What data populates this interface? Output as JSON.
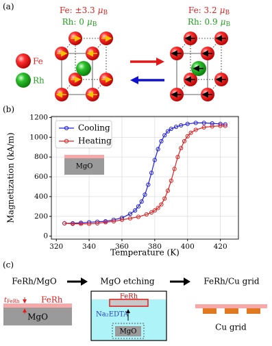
{
  "panel_a": {
    "label": "(a)",
    "left": {
      "fe": {
        "text": "Fe: ±3.3",
        "unit": "μ",
        "unit_sub": "B"
      },
      "rh": {
        "text": "Rh: 0",
        "unit": "μ",
        "unit_sub": "B"
      }
    },
    "right": {
      "fe": {
        "text": "Fe: 3.2",
        "unit": "μ",
        "unit_sub": "B"
      },
      "rh": {
        "text": "Rh: 0.9",
        "unit": "μ",
        "unit_sub": "B"
      }
    },
    "legend": [
      "Fe",
      "Rh"
    ]
  },
  "panel_b": {
    "label": "(b)",
    "inset_label": "MgO"
  },
  "chart_data": {
    "type": "line",
    "x_label": "Temperature (K)",
    "y_label": "Magnetization (kA/m)",
    "xlim": [
      317,
      431
    ],
    "ylim": [
      -30,
      1210
    ],
    "xticks": [
      320,
      340,
      360,
      380,
      400,
      420
    ],
    "yticks": [
      0,
      200,
      400,
      600,
      800,
      1000,
      1200
    ],
    "grid": true,
    "legend_position": "upper-left",
    "series": [
      {
        "name": "Cooling",
        "color": "#1f1fe0",
        "x": [
          325,
          330,
          335,
          340,
          345,
          350,
          355,
          360,
          365,
          368,
          370,
          372,
          374,
          376,
          378,
          380,
          382,
          384,
          386,
          388,
          390,
          393,
          396,
          400,
          405,
          410,
          415,
          420,
          423
        ],
        "values": [
          130,
          130,
          135,
          140,
          145,
          150,
          165,
          185,
          225,
          260,
          300,
          350,
          420,
          520,
          640,
          770,
          880,
          960,
          1020,
          1060,
          1085,
          1105,
          1120,
          1135,
          1145,
          1145,
          1140,
          1135,
          1130
        ]
      },
      {
        "name": "Heating",
        "color": "#e02020",
        "x": [
          325,
          330,
          335,
          340,
          345,
          350,
          355,
          360,
          365,
          370,
          375,
          378,
          380,
          382,
          384,
          386,
          388,
          390,
          392,
          394,
          396,
          398,
          400,
          402,
          405,
          410,
          415,
          420,
          423
        ],
        "values": [
          130,
          125,
          125,
          125,
          130,
          140,
          150,
          165,
          180,
          195,
          220,
          240,
          260,
          285,
          320,
          380,
          460,
          560,
          680,
          800,
          890,
          960,
          1010,
          1045,
          1075,
          1100,
          1110,
          1115,
          1115
        ]
      }
    ]
  },
  "panel_c": {
    "label": "(c)",
    "steps": [
      "FeRh/MgO",
      "MgO etching",
      "FeRh/Cu grid"
    ],
    "thickness": {
      "symbol": "t",
      "subscript": "FeRh"
    },
    "left_film": "FeRh",
    "left_substrate": "MgO",
    "bath_film": "FeRh",
    "bath_solution": "Na₂EDTA",
    "bath_substrate": "MgO",
    "grid_label": "Cu grid"
  }
}
